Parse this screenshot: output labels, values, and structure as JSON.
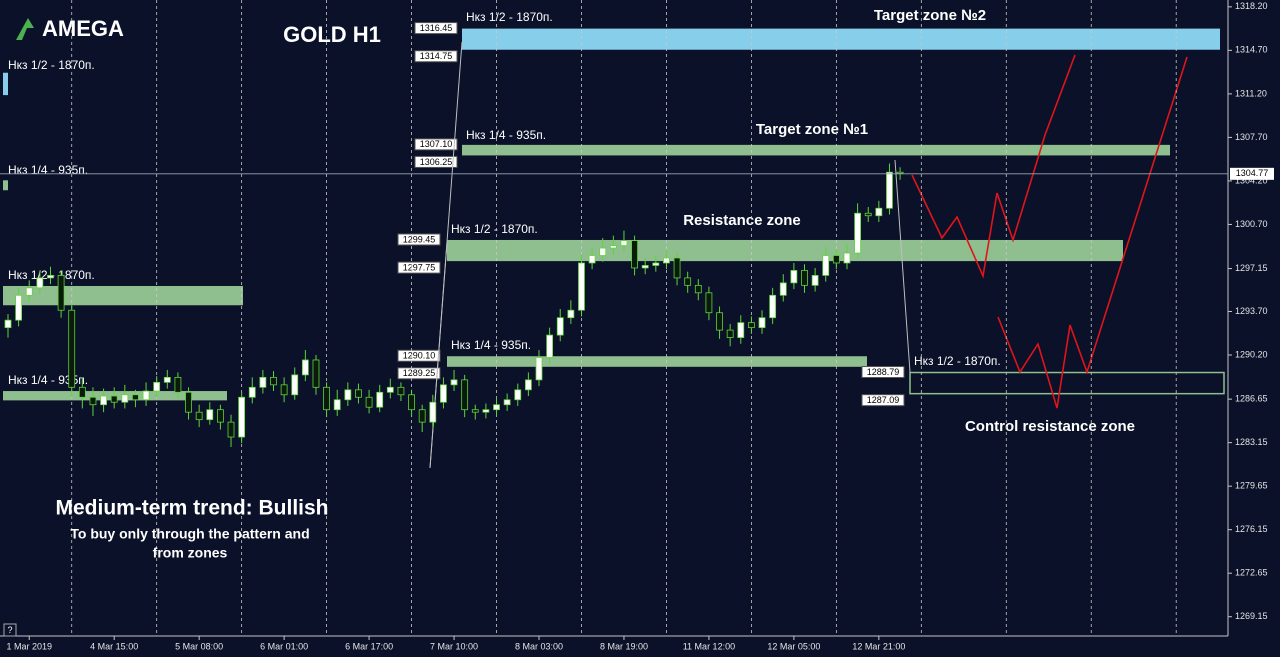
{
  "logo": "AMEGA",
  "help_button": "?",
  "chart_data": {
    "type": "candlestick",
    "title": "GOLD H1",
    "categories": [
      null,
      null,
      "1 Mar 2019",
      null,
      null,
      null,
      null,
      null,
      null,
      null,
      "4 Mar 15:00",
      null,
      null,
      null,
      null,
      null,
      null,
      null,
      "5 Mar 08:00",
      null,
      null,
      null,
      null,
      null,
      null,
      null,
      "6 Mar 01:00",
      null,
      null,
      null,
      null,
      null,
      null,
      null,
      "6 Mar 17:00",
      null,
      null,
      null,
      null,
      null,
      null,
      null,
      "7 Mar 10:00",
      null,
      null,
      null,
      null,
      null,
      null,
      null,
      "8 Mar 03:00",
      null,
      null,
      null,
      null,
      null,
      null,
      null,
      "8 Mar 19:00",
      null,
      null,
      null,
      null,
      null,
      null,
      null,
      "11 Mar 12:00",
      null,
      null,
      null,
      null,
      null,
      null,
      null,
      "12 Mar 05:00",
      null,
      null,
      null,
      null,
      null,
      null,
      null,
      "12 Mar 21:00",
      null,
      null
    ],
    "open": [
      1292.4,
      1293.0,
      1295.0,
      1295.6,
      1296.4,
      1296.6,
      1293.8,
      1287.6,
      1286.8,
      1286.2,
      1286.9,
      1286.4,
      1287.0,
      1286.6,
      1287.3,
      1288.0,
      1288.4,
      1287.2,
      1285.6,
      1285.0,
      1285.8,
      1284.8,
      1283.6,
      1286.8,
      1287.6,
      1288.4,
      1287.8,
      1287.0,
      1288.6,
      1289.8,
      1287.6,
      1285.8,
      1286.6,
      1287.4,
      1286.8,
      1286.0,
      1287.2,
      1287.6,
      1287.0,
      1285.8,
      1284.8,
      1286.4,
      1287.8,
      1288.2,
      1285.8,
      1285.6,
      1285.8,
      1286.2,
      1286.6,
      1287.4,
      1288.2,
      1290.0,
      1291.8,
      1293.2,
      1293.8,
      1297.6,
      1298.2,
      1298.8,
      1299.0,
      1299.4,
      1297.2,
      1297.4,
      1297.6,
      1298.0,
      1296.4,
      1295.8,
      1295.2,
      1293.6,
      1292.2,
      1291.6,
      1292.8,
      1292.4,
      1293.2,
      1295.0,
      1296.0,
      1297.0,
      1295.8,
      1296.6,
      1298.2,
      1297.6,
      1298.4,
      1301.6,
      1301.4,
      1302.0,
      1304.9
    ],
    "high": [
      1293.5,
      1295.6,
      1296.2,
      1297.0,
      1297.3,
      1297.0,
      1294.3,
      1288.4,
      1287.6,
      1287.5,
      1287.6,
      1287.8,
      1287.4,
      1288.0,
      1288.5,
      1289.0,
      1288.8,
      1287.6,
      1286.2,
      1286.4,
      1286.2,
      1285.4,
      1287.2,
      1288.4,
      1289.0,
      1288.9,
      1288.4,
      1289.2,
      1290.6,
      1290.2,
      1288.0,
      1287.4,
      1288.0,
      1287.9,
      1287.4,
      1287.8,
      1288.3,
      1288.0,
      1287.4,
      1286.2,
      1287.0,
      1288.4,
      1289.0,
      1288.6,
      1286.2,
      1286.3,
      1286.7,
      1287.1,
      1287.9,
      1288.8,
      1290.6,
      1292.4,
      1293.9,
      1294.6,
      1298.3,
      1298.8,
      1299.6,
      1299.8,
      1300.2,
      1299.8,
      1298.0,
      1298.2,
      1298.6,
      1298.5,
      1296.9,
      1296.3,
      1295.7,
      1294.1,
      1292.7,
      1293.4,
      1293.3,
      1293.8,
      1295.6,
      1296.7,
      1297.6,
      1297.5,
      1297.2,
      1298.9,
      1298.7,
      1299.1,
      1302.4,
      1302.1,
      1302.6,
      1305.6,
      1305.3
    ],
    "low": [
      1291.6,
      1292.5,
      1294.5,
      1295.1,
      1295.9,
      1293.2,
      1286.8,
      1285.9,
      1285.3,
      1285.6,
      1285.9,
      1285.9,
      1286.0,
      1286.1,
      1286.8,
      1287.5,
      1286.7,
      1285.0,
      1284.4,
      1284.6,
      1284.2,
      1282.8,
      1283.1,
      1286.3,
      1287.1,
      1287.3,
      1286.4,
      1286.6,
      1288.1,
      1287.0,
      1285.2,
      1285.3,
      1286.1,
      1286.3,
      1285.5,
      1285.6,
      1286.7,
      1286.5,
      1285.2,
      1284.0,
      1284.3,
      1285.9,
      1287.3,
      1285.2,
      1285.0,
      1285.1,
      1285.3,
      1285.7,
      1286.1,
      1286.9,
      1287.7,
      1289.5,
      1291.3,
      1292.7,
      1293.3,
      1297.1,
      1297.7,
      1298.3,
      1298.5,
      1296.6,
      1296.7,
      1296.9,
      1297.1,
      1295.8,
      1295.2,
      1294.6,
      1293.0,
      1291.5,
      1290.9,
      1291.1,
      1291.9,
      1291.9,
      1292.7,
      1294.5,
      1295.5,
      1295.2,
      1295.3,
      1296.1,
      1297.1,
      1297.1,
      1297.9,
      1300.9,
      1300.9,
      1301.5,
      1304.3
    ],
    "close": [
      1293.0,
      1295.0,
      1295.6,
      1296.4,
      1296.6,
      1293.8,
      1287.6,
      1286.8,
      1286.2,
      1286.9,
      1286.4,
      1287.0,
      1286.6,
      1287.3,
      1288.0,
      1288.4,
      1287.2,
      1285.6,
      1285.0,
      1285.8,
      1284.8,
      1283.6,
      1286.8,
      1287.6,
      1288.4,
      1287.8,
      1287.0,
      1288.6,
      1289.8,
      1287.6,
      1285.8,
      1286.6,
      1287.4,
      1286.8,
      1286.0,
      1287.2,
      1287.6,
      1287.0,
      1285.8,
      1284.8,
      1286.4,
      1287.8,
      1288.2,
      1285.8,
      1285.6,
      1285.8,
      1286.2,
      1286.6,
      1287.4,
      1288.2,
      1290.0,
      1291.8,
      1293.2,
      1293.8,
      1297.6,
      1298.2,
      1298.8,
      1299.0,
      1299.4,
      1297.2,
      1297.4,
      1297.6,
      1298.0,
      1296.4,
      1295.8,
      1295.2,
      1293.6,
      1292.2,
      1291.6,
      1292.8,
      1292.4,
      1293.2,
      1295.0,
      1296.0,
      1297.0,
      1295.8,
      1296.6,
      1298.2,
      1297.6,
      1298.4,
      1301.6,
      1301.4,
      1302.0,
      1304.9,
      1304.8
    ],
    "up_color": "#ffffff",
    "down_color": "#0b1a0b",
    "wick_color": "#5fd43a",
    "ylim": [
      1267.6,
      1318.75
    ],
    "yticks": [
      {
        "value": 1318.2,
        "label": "1318.20"
      },
      {
        "value": 1314.7,
        "label": "1314.70"
      },
      {
        "value": 1311.2,
        "label": "1311.20"
      },
      {
        "value": 1307.7,
        "label": "1307.70"
      },
      {
        "value": 1304.2,
        "label": "1304.20"
      },
      {
        "value": 1300.7,
        "label": "1300.70"
      },
      1297.15,
      {
        "value": 1293.7,
        "label": "1293.70"
      },
      {
        "value": 1290.2,
        "label": "1290.20"
      },
      1286.65,
      1283.15,
      1279.65,
      1276.15,
      1272.65,
      1269.15
    ],
    "grid": true,
    "current_price": 1304.77,
    "zones": [
      {
        "name": "Target zone №2",
        "label": "Нкз 1/2 - 1870п.",
        "top": 1316.45,
        "bottom": 1314.75,
        "color": "#87ceeb"
      },
      {
        "name": "Target zone №1",
        "label": "Нкз 1/4 - 935п.",
        "top": {
          "value": 1307.1,
          "label": "1307.10"
        },
        "bottom": 1306.25,
        "color": "#8fbf8f"
      },
      {
        "name": "Resistance zone",
        "label": "Нкз 1/2 - 1870п.",
        "top": 1299.45,
        "bottom": 1297.75,
        "color": "#8fbf8f"
      },
      {
        "label": "Нкз 1/4 - 935п.",
        "top": {
          "value": 1290.1,
          "label": "1290.10"
        },
        "bottom": 1289.25,
        "color": "#8fbf8f"
      },
      {
        "name": "Control resistance zone",
        "label": "Нкз 1/2 - 1870п.",
        "top": 1288.79,
        "bottom": 1287.09,
        "color": "#8fbf8f",
        "outline": true
      },
      {
        "label": "Нкз 1/2 - 1870п.",
        "top": 1295.75,
        "bottom": 1294.2,
        "color": "#8fbf8f"
      },
      {
        "label": "Нкз 1/4 - 935п.",
        "top": 1287.3,
        "bottom": 1286.55,
        "color": "#8fbf8f"
      },
      {
        "label": "Нкз 1/2 - 1870п.",
        "top": 1312.9,
        "bottom": 1311.1,
        "color": "#87ceeb"
      },
      {
        "label": "Нкз 1/4 - 935п.",
        "top": 1304.25,
        "bottom": 1303.45,
        "color": "#8fbf8f"
      }
    ],
    "annotations": [
      "Medium-term trend: Bullish",
      "To buy only through the pattern  and",
      "from zones"
    ]
  }
}
